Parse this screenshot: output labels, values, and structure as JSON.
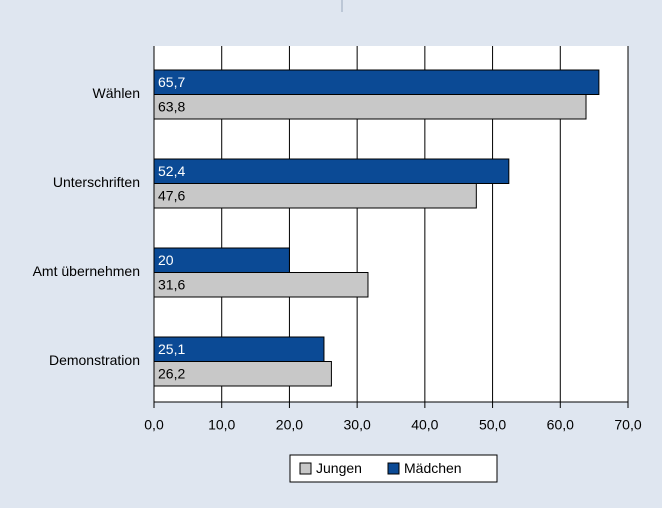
{
  "chart_data": {
    "type": "hbar",
    "categories": [
      "Wählen",
      "Unterschriften",
      "Amt übernehmen",
      "Demonstration"
    ],
    "series": [
      {
        "name": "Jungen",
        "color": "#c8c8c8",
        "values": [
          63.8,
          47.6,
          31.6,
          26.2
        ],
        "value_labels": [
          "63,8",
          "47,6",
          "31,6",
          "26,2"
        ]
      },
      {
        "name": "Mädchen",
        "color": "#0b4a95",
        "values": [
          65.7,
          52.4,
          20,
          25.1
        ],
        "value_labels": [
          "65,7",
          "52,4",
          "20",
          "25,1"
        ]
      }
    ],
    "xlim": [
      0,
      70
    ],
    "xticks": [
      {
        "value": 0,
        "label": "0,0"
      },
      {
        "value": 10,
        "label": "10,0"
      },
      {
        "value": 20,
        "label": "20,0"
      },
      {
        "value": 30,
        "label": "30,0"
      },
      {
        "value": 40,
        "label": "40,0"
      },
      {
        "value": 50,
        "label": "50,0"
      },
      {
        "value": 60,
        "label": "60,0"
      },
      {
        "value": 70,
        "label": "70,0"
      }
    ],
    "grid": true,
    "legend": "bottom"
  }
}
